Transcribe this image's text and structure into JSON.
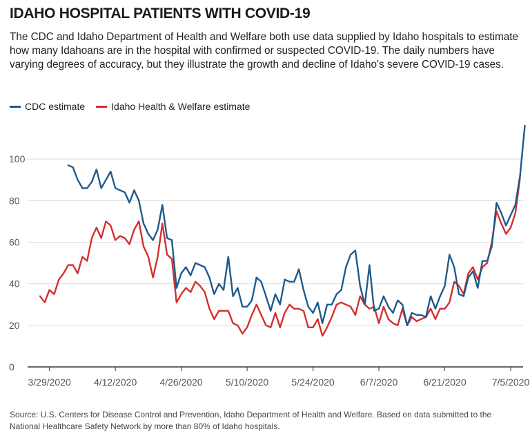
{
  "title": "IDAHO HOSPITAL PATIENTS WITH COVID-19",
  "subtitle": "The CDC and Idaho Department of Health and Welfare both use data supplied by Idaho hospitals to estimate how many Idahoans are in the hospital with confirmed or suspected COVID-19. The daily numbers have varying degrees of accuracy, but they illustrate the growth and decline of Idaho's severe COVID-19 cases.",
  "source": "Source: U.S. Centers for Disease Control and Prevention, Idaho Department of Health and Welfare. Based on data submitted to the National Healthcare Safety Network by more than 80% of Idaho hospitals.",
  "colors": {
    "cdc": "#1f5a8c",
    "idhw": "#d32f2f",
    "grid": "#dcdcdc",
    "axis": "#333333"
  },
  "chart_data": {
    "type": "line",
    "title": "IDAHO HOSPITAL PATIENTS WITH COVID-19",
    "xlabel": "",
    "ylabel": "",
    "ylim": [
      0,
      120
    ],
    "yticks": [
      0,
      20,
      40,
      60,
      80,
      100
    ],
    "x_start": "2020-03-27",
    "x_end": "2020-07-08",
    "xticks": [
      {
        "day": 2,
        "label": "3/29/2020"
      },
      {
        "day": 16,
        "label": "4/12/2020"
      },
      {
        "day": 30,
        "label": "4/26/2020"
      },
      {
        "day": 44,
        "label": "5/10/2020"
      },
      {
        "day": 58,
        "label": "5/24/2020"
      },
      {
        "day": 72,
        "label": "6/7/2020"
      },
      {
        "day": 86,
        "label": "6/21/2020"
      },
      {
        "day": 100,
        "label": "7/5/2020"
      }
    ],
    "grid": true,
    "legend_position": "top-left",
    "series": [
      {
        "name": "CDC estimate",
        "color": "#1f5a8c",
        "start_day": 6,
        "values": [
          97,
          96,
          90,
          86,
          86,
          89,
          95,
          86,
          90,
          94,
          86,
          85,
          84,
          79,
          85,
          80,
          69,
          64,
          61,
          66,
          78,
          62,
          61,
          38,
          45,
          48,
          44,
          50,
          49,
          48,
          43,
          35,
          40,
          37,
          53,
          34,
          38,
          29,
          29,
          32,
          43,
          41,
          34,
          27,
          35,
          30,
          42,
          41,
          41,
          47,
          37,
          29,
          26,
          31,
          21,
          30,
          30,
          35,
          37,
          48,
          54,
          56,
          39,
          30,
          49,
          27,
          28,
          34,
          29,
          26,
          32,
          30,
          20,
          26,
          25,
          25,
          24,
          34,
          28,
          34,
          39,
          54,
          48,
          35,
          34,
          43,
          46,
          38,
          51,
          51,
          58,
          79,
          74,
          68,
          73,
          78,
          92,
          116
        ]
      },
      {
        "name": "Idaho Health & Welfare estimate",
        "color": "#d32f2f",
        "start_day": 0,
        "values": [
          34,
          31,
          37,
          35,
          42,
          45,
          49,
          49,
          45,
          53,
          51,
          62,
          67,
          62,
          70,
          68,
          61,
          63,
          62,
          59,
          66,
          70,
          58,
          53,
          43,
          53,
          69,
          54,
          52,
          31,
          35,
          38,
          36,
          41,
          39,
          36,
          28,
          23,
          27,
          27,
          27,
          21,
          20,
          16,
          19,
          25,
          30,
          25,
          20,
          19,
          26,
          19,
          26,
          30,
          28,
          28,
          27,
          19,
          19,
          23,
          15,
          19,
          24,
          30,
          31,
          30,
          29,
          25,
          34,
          30,
          28,
          29,
          21,
          29,
          23,
          21,
          20,
          28,
          20,
          24,
          22,
          23,
          24,
          28,
          23,
          28,
          28,
          31,
          41,
          39,
          35,
          45,
          48,
          42,
          48,
          50,
          60,
          75,
          69,
          64,
          67,
          74,
          91
        ]
      }
    ]
  }
}
